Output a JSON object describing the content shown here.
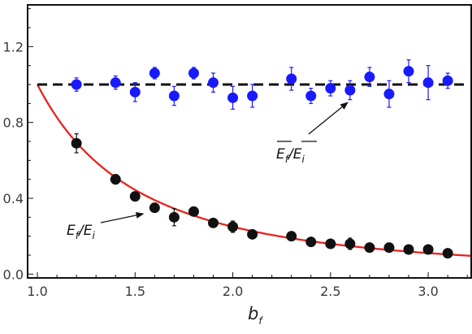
{
  "chart_data": {
    "type": "scatter",
    "title": "",
    "xlabel_base": "b",
    "xlabel_sub": "f",
    "ylabel": "",
    "xlim": [
      0.95,
      3.22
    ],
    "ylim": [
      -0.02,
      1.42
    ],
    "x_ticks": [
      1.0,
      1.5,
      2.0,
      2.5,
      3.0
    ],
    "x_tick_labels": [
      "1.0",
      "1.5",
      "2.0",
      "2.5",
      "3.0"
    ],
    "y_ticks": [
      0.0,
      0.4,
      0.8,
      1.2
    ],
    "y_tick_labels": [
      "0.0",
      "0.4",
      "0.8",
      "1.2"
    ],
    "grid": false,
    "colors": {
      "blue_series": "#1a1aff",
      "black_series": "#111111",
      "red_curve": "#e8231b",
      "dashed_line": "#111111"
    },
    "series": [
      {
        "points": [
          {
            "x": 1.2,
            "y": 1.0,
            "err": 0.035
          },
          {
            "x": 1.4,
            "y": 1.01,
            "err": 0.035
          },
          {
            "x": 1.5,
            "y": 0.96,
            "err": 0.05
          },
          {
            "x": 1.6,
            "y": 1.06,
            "err": 0.03
          },
          {
            "x": 1.7,
            "y": 0.94,
            "err": 0.05
          },
          {
            "x": 1.8,
            "y": 1.06,
            "err": 0.03
          },
          {
            "x": 1.9,
            "y": 1.01,
            "err": 0.05
          },
          {
            "x": 2.0,
            "y": 0.93,
            "err": 0.06
          },
          {
            "x": 2.1,
            "y": 0.94,
            "err": 0.06
          },
          {
            "x": 2.3,
            "y": 1.03,
            "err": 0.06
          },
          {
            "x": 2.4,
            "y": 0.94,
            "err": 0.04
          },
          {
            "x": 2.5,
            "y": 0.98,
            "err": 0.04
          },
          {
            "x": 2.6,
            "y": 0.97,
            "err": 0.05
          },
          {
            "x": 2.7,
            "y": 1.04,
            "err": 0.05
          },
          {
            "x": 2.8,
            "y": 0.95,
            "err": 0.07
          },
          {
            "x": 2.9,
            "y": 1.07,
            "err": 0.06
          },
          {
            "x": 3.0,
            "y": 1.01,
            "err": 0.09
          },
          {
            "x": 3.1,
            "y": 1.02,
            "err": 0.04
          }
        ]
      },
      {
        "points": [
          {
            "x": 1.2,
            "y": 0.69,
            "err": 0.05
          },
          {
            "x": 1.4,
            "y": 0.5,
            "err": 0.025
          },
          {
            "x": 1.5,
            "y": 0.41,
            "err": 0.015
          },
          {
            "x": 1.6,
            "y": 0.35,
            "err": 0.015
          },
          {
            "x": 1.7,
            "y": 0.3,
            "err": 0.045
          },
          {
            "x": 1.8,
            "y": 0.33,
            "err": 0.015
          },
          {
            "x": 1.9,
            "y": 0.27,
            "err": 0.015
          },
          {
            "x": 2.0,
            "y": 0.25,
            "err": 0.03
          },
          {
            "x": 2.1,
            "y": 0.21,
            "err": 0.015
          },
          {
            "x": 2.3,
            "y": 0.2,
            "err": 0.015
          },
          {
            "x": 2.4,
            "y": 0.17,
            "err": 0.015
          },
          {
            "x": 2.5,
            "y": 0.16,
            "err": 0.015
          },
          {
            "x": 2.6,
            "y": 0.16,
            "err": 0.03
          },
          {
            "x": 2.7,
            "y": 0.14,
            "err": 0.015
          },
          {
            "x": 2.8,
            "y": 0.14,
            "err": 0.015
          },
          {
            "x": 2.9,
            "y": 0.13,
            "err": 0.015
          },
          {
            "x": 3.0,
            "y": 0.13,
            "err": 0.015
          },
          {
            "x": 3.1,
            "y": 0.11,
            "err": 0.015
          }
        ]
      }
    ],
    "reference_line": {
      "style": "dashed",
      "y": 1.0,
      "x_from": 1.0,
      "x_to": 3.22
    },
    "fit_curve": {
      "function": "1/x^2",
      "x_from": 1.0,
      "x_to": 3.22
    },
    "annotations": [
      {
        "label_base_1": "E",
        "label_sub_1": "f",
        "label_sep": "/",
        "label_base_2": "E",
        "label_sub_2": "i",
        "overbar": true,
        "arrow_to": {
          "x": 2.6,
          "y": 0.96
        }
      },
      {
        "label_base_1": "E",
        "label_sub_1": "f",
        "label_sep": "/",
        "label_base_2": "E",
        "label_sub_2": "i",
        "overbar": false,
        "arrow_to": {
          "x": 1.58,
          "y": 0.345
        }
      }
    ]
  }
}
